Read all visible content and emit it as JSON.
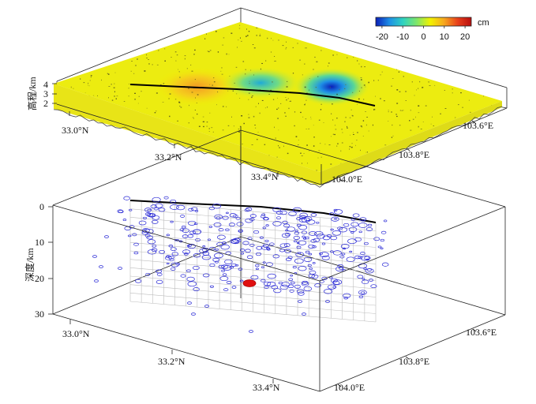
{
  "chart_data": [
    {
      "type": "surface",
      "zlabel": "高程/km",
      "z_ticks": [
        "2",
        "3",
        "4"
      ],
      "lat_ticks": [
        "33.0°N",
        "33.2°N",
        "33.4°N"
      ],
      "lon_ticks": [
        "103.6°E",
        "103.8°E",
        "104.0°E"
      ],
      "colorbar": {
        "unit": "cm",
        "ticks": [
          "-20",
          "-10",
          "0",
          "10",
          "20"
        ],
        "range": [
          -23,
          23
        ],
        "colors": [
          "#0b1fb8",
          "#1e8fe6",
          "#2fd3c0",
          "#7fe66a",
          "#f2f200",
          "#f7a81f",
          "#e8401b",
          "#b80e0e"
        ]
      },
      "fault_trace": true
    },
    {
      "type": "scatter3d",
      "zlabel": "深度/km",
      "z_ticks": [
        "0",
        "10",
        "20",
        "30"
      ],
      "lat_ticks": [
        "33.0°N",
        "33.2°N",
        "33.4°N"
      ],
      "lon_ticks": [
        "103.6°E",
        "103.8°E",
        "104.0°E"
      ],
      "marker_color": "#2a2ad6",
      "mainshock_color": "#e01010",
      "fault_plane": true
    }
  ]
}
